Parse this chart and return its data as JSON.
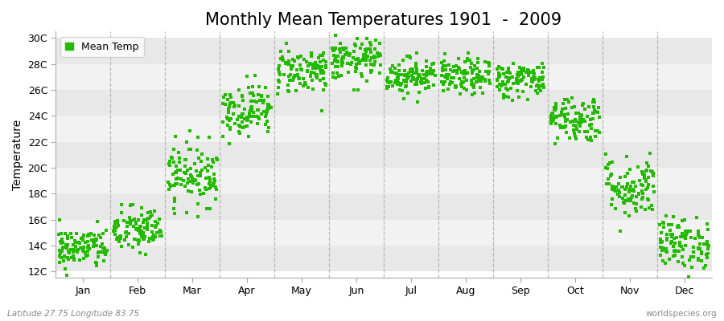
{
  "title": "Monthly Mean Temperatures 1901  -  2009",
  "ylabel": "Temperature",
  "xlabel_months": [
    "Jan",
    "Feb",
    "Mar",
    "Apr",
    "May",
    "Jun",
    "Jul",
    "Aug",
    "Sep",
    "Oct",
    "Nov",
    "Dec"
  ],
  "ytick_labels": [
    "12C",
    "14C",
    "16C",
    "18C",
    "20C",
    "22C",
    "24C",
    "26C",
    "28C",
    "30C"
  ],
  "ytick_values": [
    12,
    14,
    16,
    18,
    20,
    22,
    24,
    26,
    28,
    30
  ],
  "ylim": [
    11.5,
    30.5
  ],
  "dot_color": "#22bb00",
  "bg_color": "#ffffff",
  "band_color_light": "#f2f2f2",
  "band_color_dark": "#e8e8e8",
  "grid_color": "#aaaaaa",
  "legend_label": "Mean Temp",
  "footnote_left": "Latitude 27.75 Longitude 83.75",
  "footnote_right": "worldspecies.org",
  "title_fontsize": 15,
  "axis_fontsize": 10,
  "tick_fontsize": 9,
  "monthly_means": [
    13.8,
    15.2,
    19.5,
    24.5,
    27.5,
    28.3,
    27.1,
    27.0,
    26.8,
    23.8,
    18.5,
    14.2
  ],
  "monthly_stds": [
    0.8,
    0.9,
    1.2,
    1.0,
    0.9,
    0.8,
    0.7,
    0.7,
    0.7,
    0.9,
    1.2,
    1.0
  ],
  "n_years": 109
}
